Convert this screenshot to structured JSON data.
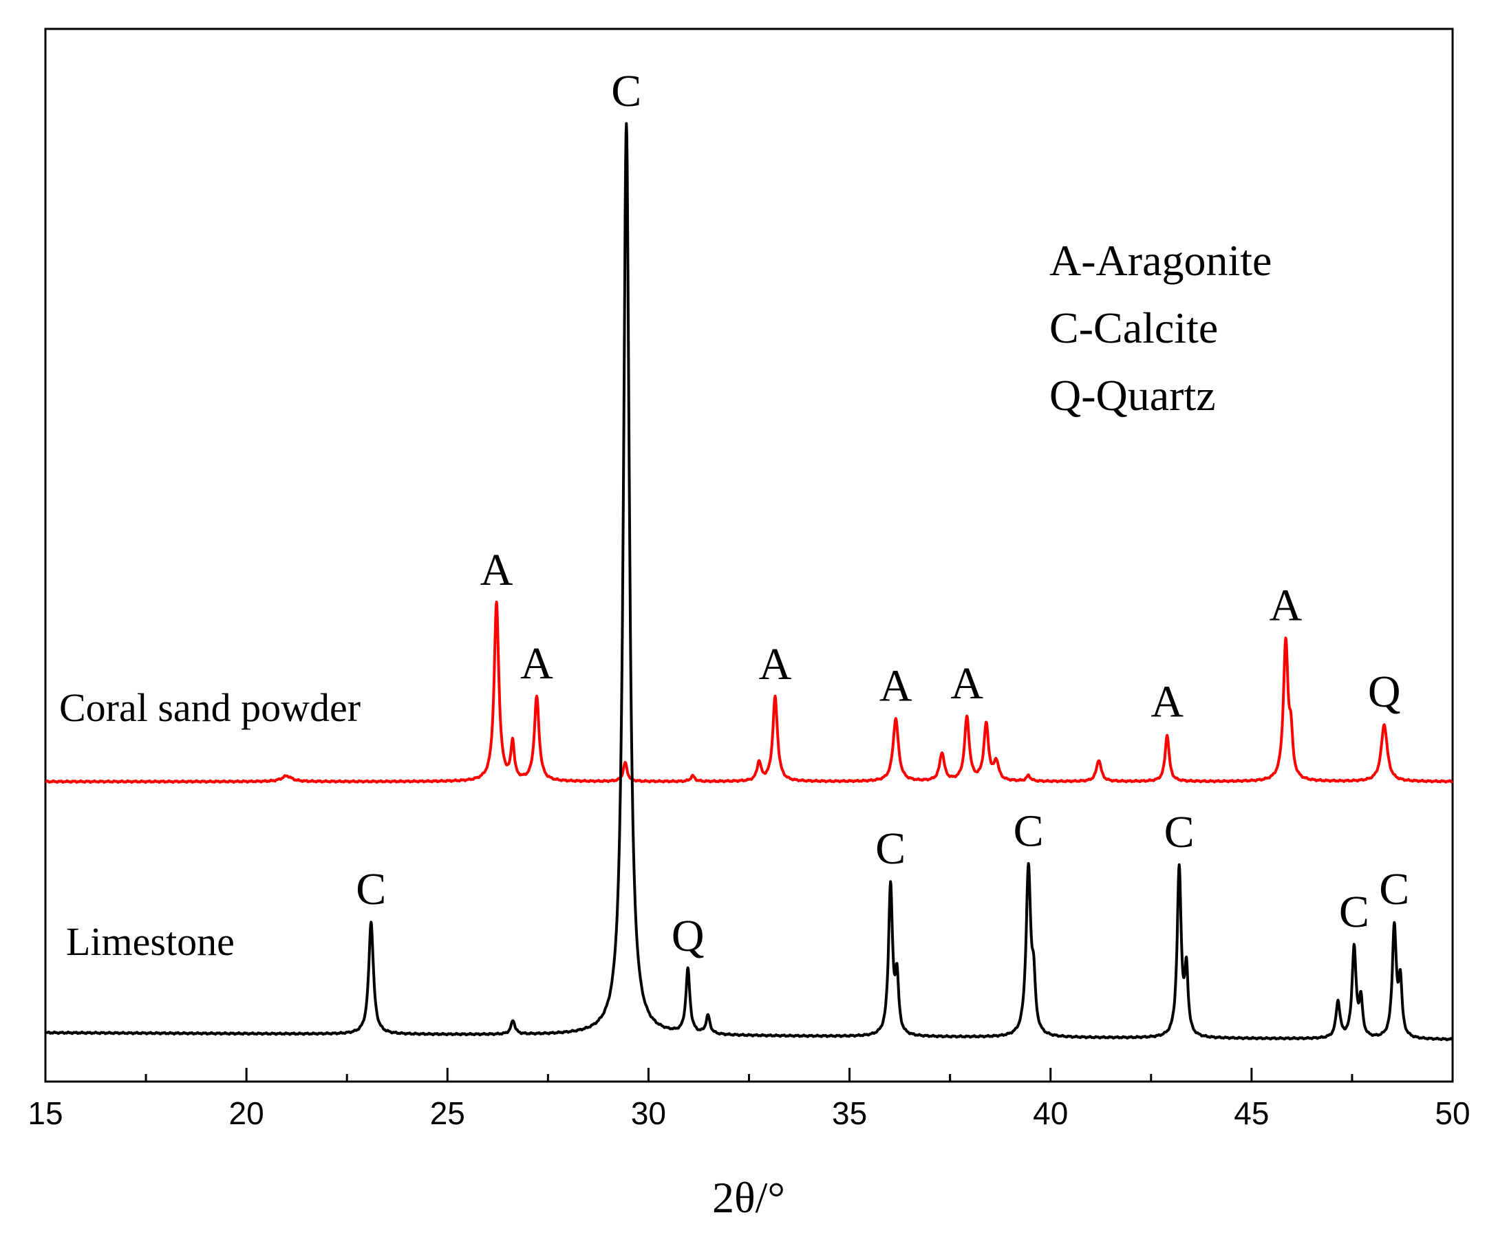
{
  "chart_data": {
    "type": "line",
    "title": "",
    "xlabel": "2θ/°",
    "ylabel": "",
    "xlim": [
      15,
      50
    ],
    "x_ticks": [
      15,
      20,
      25,
      30,
      35,
      40,
      45,
      50
    ],
    "y_ticks_visible": false,
    "grid": false,
    "legend_text": [
      "A-Aragonite",
      "C-Calcite",
      "Q-Quartz"
    ],
    "legend_position": "top-right",
    "series": [
      {
        "name": "Coral sand powder",
        "color": "#ff0000",
        "baseline": 0,
        "peaks": [
          {
            "x": 21.0,
            "h": 0.006,
            "w": 0.15
          },
          {
            "x": 26.22,
            "h": 0.19,
            "w": 0.07
          },
          {
            "x": 26.62,
            "h": 0.04,
            "w": 0.05
          },
          {
            "x": 27.22,
            "h": 0.09,
            "w": 0.07
          },
          {
            "x": 29.42,
            "h": 0.02,
            "w": 0.06
          },
          {
            "x": 31.1,
            "h": 0.006,
            "w": 0.06
          },
          {
            "x": 32.75,
            "h": 0.02,
            "w": 0.06
          },
          {
            "x": 33.15,
            "h": 0.09,
            "w": 0.07
          },
          {
            "x": 36.15,
            "h": 0.067,
            "w": 0.08
          },
          {
            "x": 37.3,
            "h": 0.03,
            "w": 0.07
          },
          {
            "x": 37.92,
            "h": 0.068,
            "w": 0.07
          },
          {
            "x": 38.4,
            "h": 0.06,
            "w": 0.07
          },
          {
            "x": 38.65,
            "h": 0.02,
            "w": 0.07
          },
          {
            "x": 39.45,
            "h": 0.006,
            "w": 0.06
          },
          {
            "x": 41.2,
            "h": 0.023,
            "w": 0.07
          },
          {
            "x": 42.9,
            "h": 0.05,
            "w": 0.06
          },
          {
            "x": 45.85,
            "h": 0.148,
            "w": 0.07
          },
          {
            "x": 45.98,
            "h": 0.04,
            "w": 0.05
          },
          {
            "x": 48.3,
            "h": 0.061,
            "w": 0.09
          }
        ],
        "annotations": [
          {
            "x": 26.22,
            "label": "A"
          },
          {
            "x": 27.22,
            "label": "A"
          },
          {
            "x": 33.15,
            "label": "A"
          },
          {
            "x": 36.15,
            "label": "A"
          },
          {
            "x": 37.92,
            "label": "A"
          },
          {
            "x": 42.9,
            "label": "A"
          },
          {
            "x": 45.85,
            "label": "A"
          },
          {
            "x": 48.3,
            "label": "Q"
          }
        ]
      },
      {
        "name": "Limestone",
        "color": "#000000",
        "baseline": 0,
        "peaks": [
          {
            "x": 23.1,
            "h": 0.123,
            "w": 0.07
          },
          {
            "x": 26.63,
            "h": 0.015,
            "w": 0.06
          },
          {
            "x": 29.45,
            "h": 1.0,
            "w": 0.09
          },
          {
            "x": 30.98,
            "h": 0.07,
            "w": 0.06
          },
          {
            "x": 31.48,
            "h": 0.02,
            "w": 0.06
          },
          {
            "x": 36.02,
            "h": 0.165,
            "w": 0.06
          },
          {
            "x": 36.18,
            "h": 0.06,
            "w": 0.05
          },
          {
            "x": 39.45,
            "h": 0.184,
            "w": 0.07
          },
          {
            "x": 39.58,
            "h": 0.05,
            "w": 0.05
          },
          {
            "x": 43.2,
            "h": 0.185,
            "w": 0.06
          },
          {
            "x": 43.38,
            "h": 0.07,
            "w": 0.05
          },
          {
            "x": 47.15,
            "h": 0.04,
            "w": 0.06
          },
          {
            "x": 47.55,
            "h": 0.099,
            "w": 0.06
          },
          {
            "x": 47.72,
            "h": 0.04,
            "w": 0.05
          },
          {
            "x": 48.55,
            "h": 0.122,
            "w": 0.06
          },
          {
            "x": 48.7,
            "h": 0.06,
            "w": 0.05
          }
        ],
        "annotations": [
          {
            "x": 23.1,
            "label": "C"
          },
          {
            "x": 29.45,
            "label": "C"
          },
          {
            "x": 30.98,
            "label": "Q"
          },
          {
            "x": 36.02,
            "label": "C"
          },
          {
            "x": 39.45,
            "label": "C"
          },
          {
            "x": 43.2,
            "label": "C"
          },
          {
            "x": 47.55,
            "label": "C"
          },
          {
            "x": 48.55,
            "label": "C"
          }
        ]
      }
    ]
  }
}
